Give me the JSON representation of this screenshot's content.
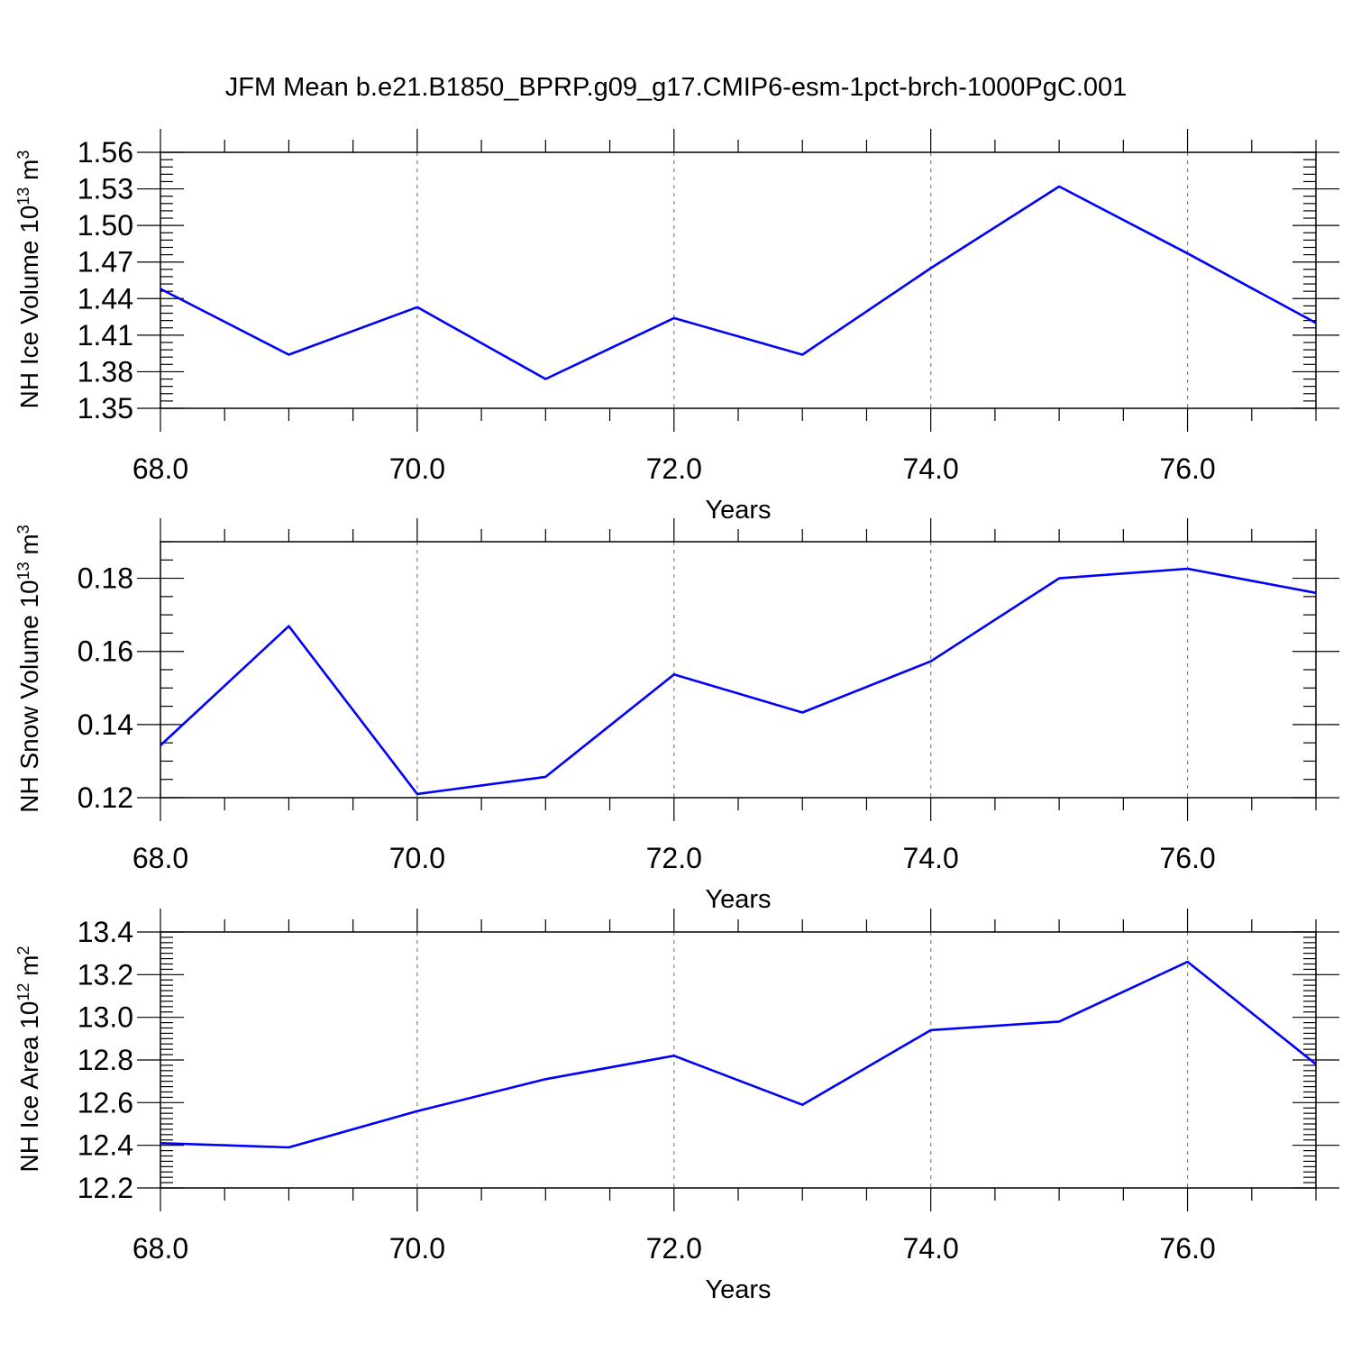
{
  "title": "JFM Mean b.e21.B1850_BPRP.g09_g17.CMIP6-esm-1pct-brch-1000PgC.001",
  "line_color": "#0000ff",
  "chart_data": [
    {
      "type": "line",
      "ylabel": "NH Ice Volume 10",
      "ylabel_exp": "13",
      "ylabel_unit": " m",
      "ylabel_unit_exp": "3",
      "xlabel": "Years",
      "xlim": [
        68,
        77
      ],
      "ylim": [
        1.35,
        1.56
      ],
      "x_ticks": [
        "68.0",
        "70.0",
        "72.0",
        "74.0",
        "76.0"
      ],
      "y_ticks": [
        "1.35",
        "1.38",
        "1.41",
        "1.44",
        "1.47",
        "1.50",
        "1.53",
        "1.56"
      ],
      "grid": "dashed vertical at major x ticks",
      "x": [
        68,
        69,
        70,
        71,
        72,
        73,
        74,
        75,
        76,
        77
      ],
      "values": [
        1.448,
        1.394,
        1.433,
        1.374,
        1.424,
        1.394,
        1.465,
        1.532,
        1.477,
        1.42
      ]
    },
    {
      "type": "line",
      "ylabel": "NH Snow Volume 10",
      "ylabel_exp": "13",
      "ylabel_unit": " m",
      "ylabel_unit_exp": "3",
      "xlabel": "Years",
      "xlim": [
        68,
        77
      ],
      "ylim": [
        0.12,
        0.19
      ],
      "x_ticks": [
        "68.0",
        "70.0",
        "72.0",
        "74.0",
        "76.0"
      ],
      "y_ticks": [
        "0.12",
        "0.14",
        "0.16",
        "0.18"
      ],
      "grid": "dashed vertical at major x ticks",
      "x": [
        68,
        69,
        70,
        71,
        72,
        73,
        74,
        75,
        76,
        77
      ],
      "values": [
        0.1343,
        0.1669,
        0.121,
        0.1257,
        0.1537,
        0.1433,
        0.1573,
        0.18,
        0.1826,
        0.176
      ]
    },
    {
      "type": "line",
      "ylabel": "NH Ice Area 10",
      "ylabel_exp": "12",
      "ylabel_unit": " m",
      "ylabel_unit_exp": "2",
      "xlabel": "Years",
      "xlim": [
        68,
        77
      ],
      "ylim": [
        12.2,
        13.4
      ],
      "x_ticks": [
        "68.0",
        "70.0",
        "72.0",
        "74.0",
        "76.0"
      ],
      "y_ticks": [
        "12.2",
        "12.4",
        "12.6",
        "12.8",
        "13.0",
        "13.2",
        "13.4"
      ],
      "grid": "dashed vertical at major x ticks",
      "x": [
        68,
        69,
        70,
        71,
        72,
        73,
        74,
        75,
        76,
        77
      ],
      "values": [
        12.41,
        12.39,
        12.56,
        12.71,
        12.82,
        12.59,
        12.94,
        12.98,
        13.26,
        12.78
      ]
    }
  ]
}
